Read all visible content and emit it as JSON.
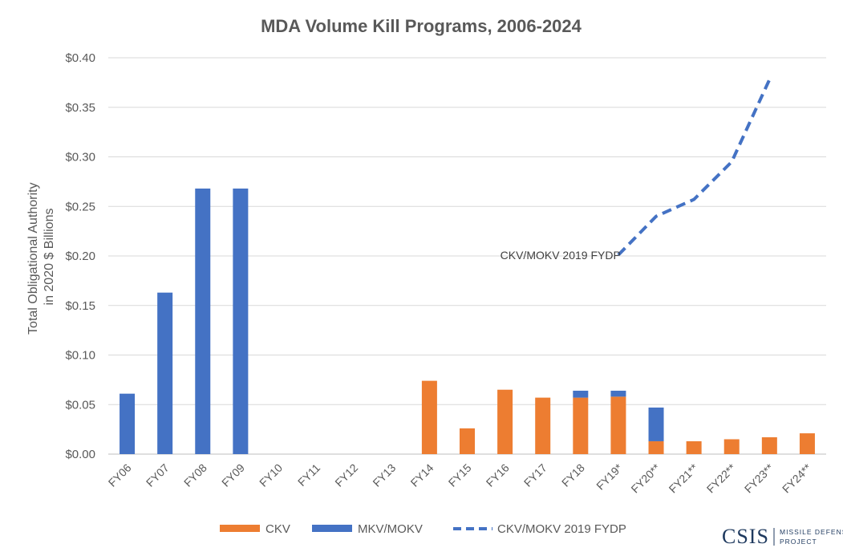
{
  "chart_data": {
    "type": "bar",
    "stacked": true,
    "title": "MDA Volume Kill Programs, 2006-2024",
    "xlabel": "",
    "ylabel": "Total Obligational Authority in 2020 $ Billions",
    "ylabel_lines": [
      "Total Obligational Authority",
      "in 2020 $ Billions"
    ],
    "ylim": [
      0,
      0.4
    ],
    "ytick_labels": [
      "$0.00",
      "$0.05",
      "$0.10",
      "$0.15",
      "$0.20",
      "$0.25",
      "$0.30",
      "$0.35",
      "$0.40"
    ],
    "grid": true,
    "categories": [
      "FY06",
      "FY07",
      "FY08",
      "FY09",
      "FY10",
      "FY11",
      "FY12",
      "FY13",
      "FY14",
      "FY15",
      "FY16",
      "FY17",
      "FY18",
      "FY19*",
      "FY20**",
      "FY21**",
      "FY22**",
      "FY23**",
      "FY24**"
    ],
    "series": [
      {
        "name": "CKV",
        "kind": "bar",
        "color": "#ed7d31",
        "values": [
          0,
          0,
          0,
          0,
          0,
          0,
          0,
          0,
          0.074,
          0.026,
          0.065,
          0.057,
          0.057,
          0.058,
          0.013,
          0.013,
          0.015,
          0.017,
          0.021
        ]
      },
      {
        "name": "MKV/MOKV",
        "kind": "bar",
        "color": "#4472c4",
        "values": [
          0.061,
          0.163,
          0.268,
          0.268,
          0,
          0,
          0,
          0,
          0,
          0,
          0,
          0,
          0.007,
          0.006,
          0.034,
          0,
          0,
          0,
          0
        ]
      },
      {
        "name": "CKV/MOKV 2019 FYDP",
        "kind": "line",
        "style": "dashed",
        "color": "#4472c4",
        "values": [
          null,
          null,
          null,
          null,
          null,
          null,
          null,
          null,
          null,
          null,
          null,
          null,
          null,
          0.201,
          0.24,
          0.257,
          0.295,
          0.378,
          null
        ]
      }
    ],
    "annotations": [
      {
        "text": "CKV/MOKV 2019 FYDP",
        "category": "FY18",
        "y": 0.201
      }
    ],
    "legend_position": "bottom"
  },
  "logo": {
    "text": "CSIS",
    "sub_line1": "MISSILE DEFENSE",
    "sub_line2": "PROJECT"
  }
}
